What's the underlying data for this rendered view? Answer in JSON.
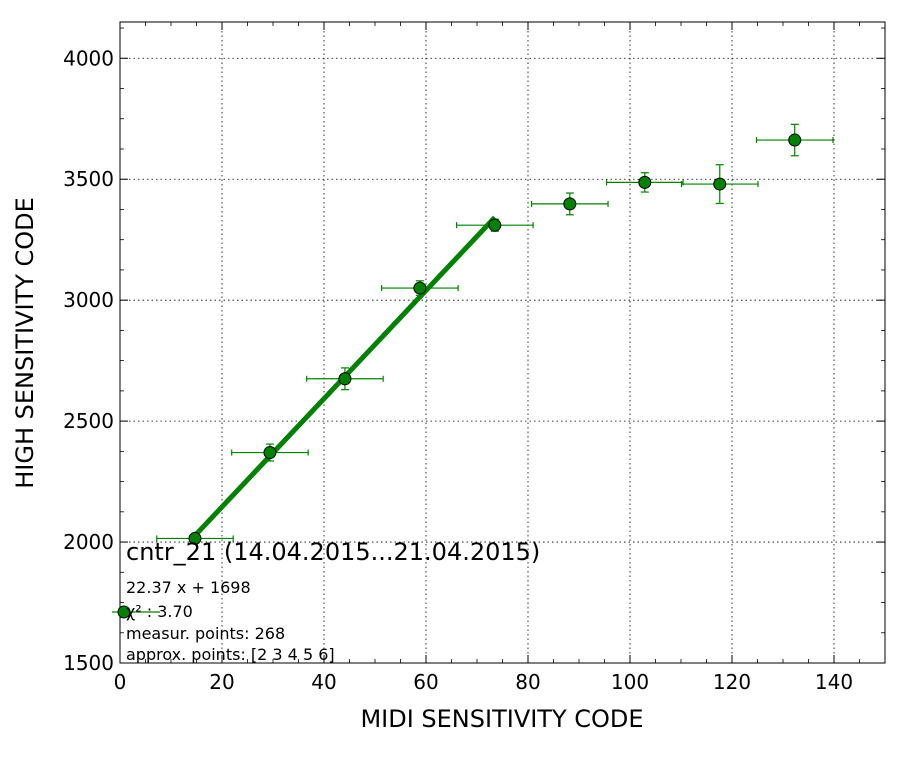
{
  "chart_data": {
    "type": "scatter",
    "xlabel": "MIDI SENSITIVITY CODE",
    "ylabel": "HIGH SENSITIVITY CODE",
    "xlim": [
      0,
      150
    ],
    "ylim": [
      1500,
      4150
    ],
    "x_ticks": [
      "0",
      "20",
      "40",
      "60",
      "80",
      "100",
      "120",
      "140"
    ],
    "y_ticks": [
      "1500",
      "2000",
      "2500",
      "3000",
      "3500",
      "4000"
    ],
    "grid": true,
    "colors": {
      "marker": "#008000",
      "fit_line": "#008000",
      "errorbar": "#008000"
    },
    "points": [
      {
        "x": 14.7,
        "y": 2015,
        "xerr": 7.5,
        "yerr": 10
      },
      {
        "x": 29.4,
        "y": 2370,
        "xerr": 7.5,
        "yerr": 35
      },
      {
        "x": 44.1,
        "y": 2675,
        "xerr": 7.5,
        "yerr": 45
      },
      {
        "x": 58.8,
        "y": 3050,
        "xerr": 7.5,
        "yerr": 30
      },
      {
        "x": 73.5,
        "y": 3310,
        "xerr": 7.5,
        "yerr": 25
      },
      {
        "x": 88.2,
        "y": 3398,
        "xerr": 7.5,
        "yerr": 45
      },
      {
        "x": 102.9,
        "y": 3487,
        "xerr": 7.5,
        "yerr": 40
      },
      {
        "x": 117.6,
        "y": 3480,
        "xerr": 7.5,
        "yerr": 80
      },
      {
        "x": 132.3,
        "y": 3662,
        "xerr": 7.5,
        "yerr": 65
      }
    ],
    "fit": {
      "slope": 22.37,
      "intercept": 1698,
      "x_range": [
        14.7,
        73.5
      ]
    },
    "annotations": {
      "title": "cntr_21 (14.04.2015...21.04.2015)",
      "equation": "22.37 x + 1698",
      "chi2": "χ² : 3.70",
      "measur_points": "measur. points: 268",
      "approx_points": "approx. points: [2 3 4 5 6]"
    }
  }
}
